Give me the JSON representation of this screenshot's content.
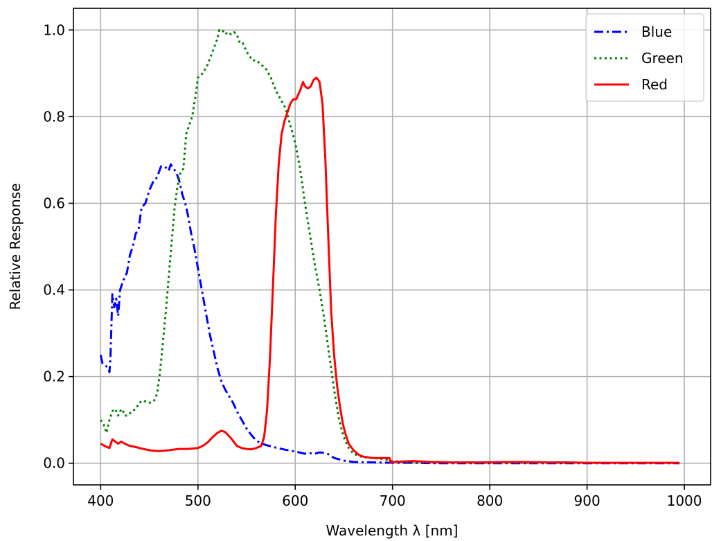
{
  "chart_data": {
    "type": "line",
    "xlabel": "Wavelength λ [nm]",
    "ylabel": "Relative Response",
    "xlim": [
      372,
      1027
    ],
    "ylim": [
      -0.05,
      1.05
    ],
    "xticks": [
      400,
      500,
      600,
      700,
      800,
      900,
      1000
    ],
    "xtick_labels": [
      "400",
      "500",
      "600",
      "700",
      "800",
      "900",
      "1000"
    ],
    "yticks": [
      0.0,
      0.2,
      0.4,
      0.6,
      0.8,
      1.0
    ],
    "ytick_labels": [
      "0.0",
      "0.2",
      "0.4",
      "0.6",
      "0.8",
      "1.0"
    ],
    "grid": true,
    "legend_position": "top-right",
    "series": [
      {
        "name": "Blue",
        "color": "#0000ff",
        "style": "dashdot",
        "x": [
          400,
          402,
          405,
          408,
          409,
          410,
          412,
          414,
          416,
          418,
          420,
          423,
          427,
          430,
          433,
          436,
          439,
          442,
          446,
          450,
          454,
          458,
          462,
          466,
          470,
          472,
          475,
          478,
          481,
          484,
          487,
          490,
          493,
          496,
          500,
          504,
          508,
          512,
          516,
          520,
          524,
          528,
          532,
          536,
          540,
          545,
          550,
          555,
          560,
          565,
          570,
          580,
          590,
          600,
          610,
          615,
          620,
          625,
          630,
          635,
          640,
          650,
          660,
          680,
          700,
          720,
          740,
          760,
          780,
          800,
          830,
          860,
          880,
          900,
          950,
          995
        ],
        "y": [
          0.25,
          0.23,
          0.225,
          0.22,
          0.21,
          0.24,
          0.39,
          0.36,
          0.38,
          0.34,
          0.4,
          0.42,
          0.44,
          0.48,
          0.5,
          0.53,
          0.54,
          0.59,
          0.6,
          0.63,
          0.65,
          0.66,
          0.685,
          0.685,
          0.675,
          0.69,
          0.68,
          0.67,
          0.65,
          0.62,
          0.6,
          0.57,
          0.53,
          0.5,
          0.45,
          0.4,
          0.35,
          0.3,
          0.26,
          0.22,
          0.19,
          0.17,
          0.155,
          0.14,
          0.12,
          0.1,
          0.08,
          0.065,
          0.052,
          0.046,
          0.042,
          0.036,
          0.031,
          0.027,
          0.022,
          0.023,
          0.022,
          0.025,
          0.024,
          0.02,
          0.012,
          0.006,
          0.003,
          0.002,
          0.001,
          0.001,
          0.0,
          0.0,
          0.0,
          0.0,
          0.0,
          0.0,
          0.0,
          0.0,
          0.0,
          0.0
        ]
      },
      {
        "name": "Green",
        "color": "#008000",
        "style": "dotted",
        "x": [
          400,
          403,
          406,
          409,
          412,
          415,
          418,
          420,
          422,
          425,
          428,
          432,
          436,
          440,
          444,
          448,
          452,
          455,
          458,
          461,
          464,
          467,
          470,
          473,
          476,
          479,
          482,
          485,
          488,
          491,
          494,
          497,
          500,
          505,
          510,
          515,
          520,
          522,
          525,
          528,
          531,
          534,
          537,
          540,
          543,
          546,
          550,
          553,
          556,
          560,
          565,
          570,
          575,
          580,
          585,
          590,
          595,
          600,
          605,
          610,
          615,
          620,
          625,
          630,
          635,
          640,
          645,
          650,
          655,
          660,
          665,
          670,
          680,
          690,
          700,
          720,
          740,
          780,
          830,
          880,
          950,
          995
        ],
        "y": [
          0.1,
          0.09,
          0.07,
          0.1,
          0.12,
          0.125,
          0.11,
          0.12,
          0.125,
          0.11,
          0.11,
          0.12,
          0.125,
          0.14,
          0.145,
          0.14,
          0.14,
          0.145,
          0.16,
          0.21,
          0.28,
          0.35,
          0.43,
          0.51,
          0.59,
          0.64,
          0.67,
          0.68,
          0.76,
          0.78,
          0.8,
          0.84,
          0.89,
          0.9,
          0.92,
          0.95,
          0.98,
          1.0,
          1.0,
          0.99,
          0.995,
          0.99,
          0.995,
          0.99,
          0.97,
          0.97,
          0.95,
          0.94,
          0.93,
          0.93,
          0.92,
          0.91,
          0.89,
          0.86,
          0.84,
          0.82,
          0.78,
          0.74,
          0.68,
          0.6,
          0.53,
          0.46,
          0.4,
          0.33,
          0.25,
          0.17,
          0.1,
          0.06,
          0.035,
          0.022,
          0.017,
          0.014,
          0.012,
          0.01,
          0.005,
          0.002,
          0.002,
          0.001,
          0.001,
          0.001,
          0.001,
          0.001
        ]
      },
      {
        "name": "Red",
        "color": "#ff0000",
        "style": "solid",
        "x": [
          400,
          404,
          409,
          412,
          415,
          418,
          421,
          425,
          430,
          435,
          440,
          450,
          460,
          470,
          480,
          490,
          500,
          505,
          510,
          515,
          520,
          524,
          528,
          531,
          535,
          540,
          545,
          550,
          555,
          560,
          565,
          568,
          571,
          574,
          577,
          580,
          583,
          586,
          589,
          592,
          595,
          598,
          601,
          605,
          608,
          610,
          613,
          616,
          619,
          622,
          625,
          628,
          631,
          634,
          637,
          640,
          643,
          646,
          649,
          652,
          655,
          660,
          665,
          670,
          680,
          690,
          697,
          698,
          700,
          710,
          720,
          730,
          740,
          760,
          790,
          830,
          860,
          880,
          900,
          950,
          995
        ],
        "y": [
          0.045,
          0.04,
          0.035,
          0.055,
          0.05,
          0.045,
          0.05,
          0.045,
          0.04,
          0.038,
          0.035,
          0.03,
          0.028,
          0.03,
          0.033,
          0.033,
          0.035,
          0.04,
          0.048,
          0.06,
          0.07,
          0.075,
          0.072,
          0.065,
          0.055,
          0.04,
          0.035,
          0.033,
          0.032,
          0.035,
          0.04,
          0.06,
          0.12,
          0.24,
          0.4,
          0.57,
          0.69,
          0.76,
          0.79,
          0.81,
          0.83,
          0.84,
          0.84,
          0.86,
          0.88,
          0.87,
          0.865,
          0.87,
          0.885,
          0.89,
          0.88,
          0.83,
          0.7,
          0.52,
          0.35,
          0.25,
          0.18,
          0.13,
          0.09,
          0.065,
          0.045,
          0.03,
          0.02,
          0.015,
          0.012,
          0.012,
          0.012,
          0.002,
          0.003,
          0.004,
          0.005,
          0.004,
          0.003,
          0.002,
          0.002,
          0.003,
          0.002,
          0.002,
          0.001,
          0.001,
          0.001
        ]
      }
    ]
  }
}
